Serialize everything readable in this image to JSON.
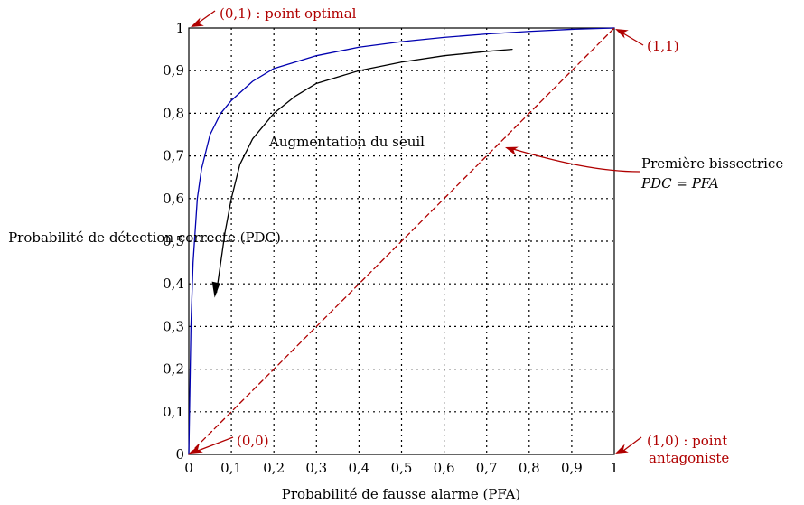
{
  "chart_data": {
    "type": "line",
    "xlabel": "Probabilité de fausse alarme (PFA)",
    "ylabel": "Probabilité de détection correcte (PDC)",
    "xlim": [
      0,
      1
    ],
    "ylim": [
      0,
      1
    ],
    "grid": true,
    "x_ticks": [
      "0",
      "0,1",
      "0,2",
      "0,3",
      "0,4",
      "0,5",
      "0,6",
      "0,7",
      "0,8",
      "0,9",
      "1"
    ],
    "y_ticks": [
      "0",
      "0,1",
      "0,2",
      "0,3",
      "0,4",
      "0,5",
      "0,6",
      "0,7",
      "0,8",
      "0,9",
      "1"
    ],
    "series": [
      {
        "name": "ROC curve (blue)",
        "color": "#0000b0",
        "x": [
          0,
          0.005,
          0.01,
          0.02,
          0.03,
          0.05,
          0.075,
          0.1,
          0.15,
          0.2,
          0.3,
          0.4,
          0.5,
          0.6,
          0.7,
          0.8,
          0.9,
          1.0
        ],
        "y": [
          0,
          0.3,
          0.45,
          0.6,
          0.67,
          0.75,
          0.8,
          0.83,
          0.875,
          0.905,
          0.935,
          0.955,
          0.968,
          0.978,
          0.986,
          0.992,
          0.997,
          1.0
        ]
      },
      {
        "name": "Première bissectrice",
        "color": "#b00000",
        "dashed": true,
        "x": [
          0,
          1
        ],
        "y": [
          0,
          1
        ]
      },
      {
        "name": "Augmentation du seuil (arrow)",
        "color": "#000000",
        "x": [
          0.76,
          0.7,
          0.6,
          0.5,
          0.4,
          0.3,
          0.25,
          0.2,
          0.15,
          0.12,
          0.1,
          0.085,
          0.075,
          0.065
        ],
        "y": [
          0.95,
          0.945,
          0.935,
          0.92,
          0.9,
          0.87,
          0.84,
          0.8,
          0.74,
          0.68,
          0.6,
          0.52,
          0.45,
          0.38
        ]
      }
    ],
    "annotations": {
      "optimal": "(0,1) : point optimal",
      "top_right": "(1,1)",
      "origin": "(0,0)",
      "antagonist_line1": "(1,0) : point",
      "antagonist_line2": "antagoniste",
      "threshold": "Augmentation du seuil",
      "bisector_line1": "Première bissectrice",
      "bisector_line2": "PDC = PFA"
    },
    "colors": {
      "accent": "#b00000",
      "roc": "#0000b0",
      "axis": "#000000"
    }
  }
}
